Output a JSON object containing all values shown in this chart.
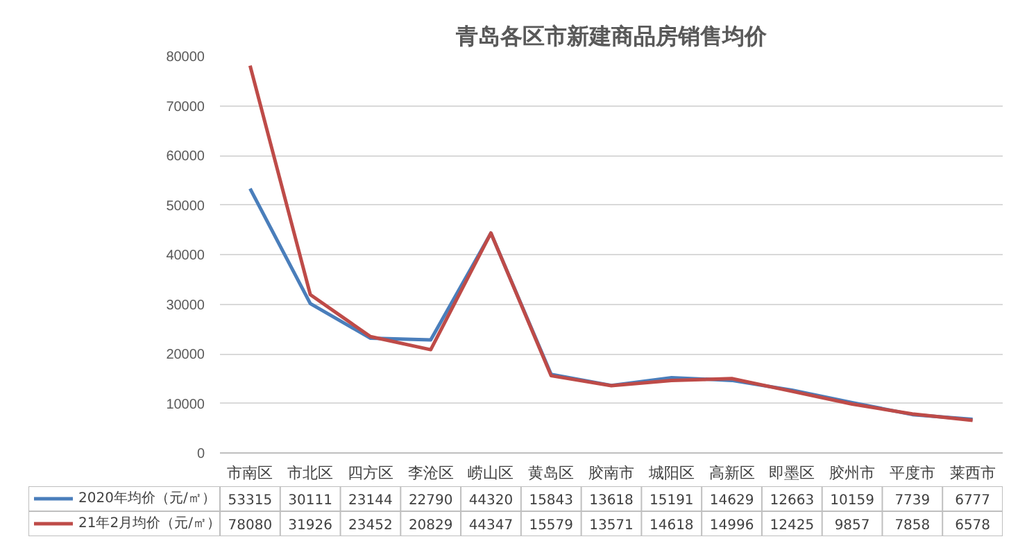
{
  "chart_data": {
    "type": "line",
    "title": "青岛各区市新建商品房销售均价",
    "categories": [
      "市南区",
      "市北区",
      "四方区",
      "李沧区",
      "崂山区",
      "黄岛区",
      "胶南市",
      "城阳区",
      "高新区",
      "即墨区",
      "胶州市",
      "平度市",
      "莱西市"
    ],
    "series": [
      {
        "name": "2020年均价（元/㎡）",
        "color": "#4a7ebb",
        "values": [
          53315,
          30111,
          23144,
          22790,
          44320,
          15843,
          13618,
          15191,
          14629,
          12663,
          10159,
          7739,
          6777
        ]
      },
      {
        "name": "21年2月均价（元/㎡）",
        "color": "#be4b48",
        "values": [
          78080,
          31926,
          23452,
          20829,
          44347,
          15579,
          13571,
          14618,
          14996,
          12425,
          9857,
          7858,
          6578
        ]
      }
    ],
    "ylim": [
      0,
      80000
    ],
    "yticks": [
      0,
      10000,
      20000,
      30000,
      40000,
      50000,
      60000,
      70000,
      80000
    ],
    "grid": "y",
    "legend": "bottom",
    "data_labels": true
  }
}
